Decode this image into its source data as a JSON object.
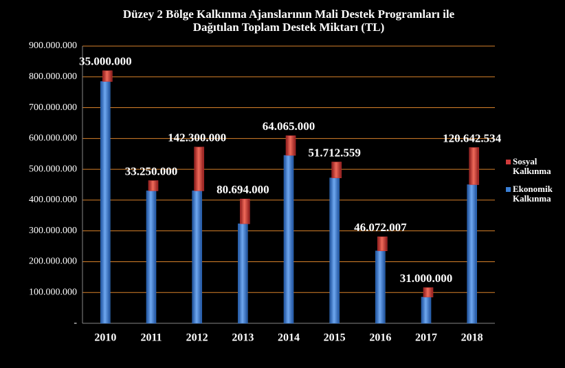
{
  "chart_data": {
    "type": "stacked_bar",
    "title": "Düzey 2 Bölge Kalkınma Ajanslarının Mali Destek Programları ile",
    "subtitle": "Dağıtılan Toplam Destek Miktarı (TL)",
    "categories": [
      "2010",
      "2011",
      "2012",
      "2013",
      "2014",
      "2015",
      "2016",
      "2017",
      "2018"
    ],
    "series": [
      {
        "name": "Ekonomik Kalkınma",
        "color": "#3a7fd5",
        "values": [
          785000000,
          430000000,
          430000000,
          323000000,
          545000000,
          472000000,
          235000000,
          85000000,
          450000000
        ]
      },
      {
        "name": "Sosyal Kalkınma",
        "color": "#d03a3a",
        "values": [
          35000000,
          33250000,
          142300000,
          80694000,
          64065000,
          51712559,
          46072007,
          31000000,
          120642534
        ],
        "value_labels": [
          "35.000.000",
          "33.250.000",
          "142.300.000",
          "80.694.000",
          "64.065.000",
          "51.712.559",
          "46.072.007",
          "31.000.000",
          "120.642.534"
        ]
      }
    ],
    "ylim": [
      0,
      900000000
    ],
    "yticks": [
      {
        "value": 0,
        "label": "-"
      },
      {
        "value": 100000000,
        "label": "100.000.000"
      },
      {
        "value": 200000000,
        "label": "200.000.000"
      },
      {
        "value": 300000000,
        "label": "300.000.000"
      },
      {
        "value": 400000000,
        "label": "400.000.000"
      },
      {
        "value": 500000000,
        "label": "500.000.000"
      },
      {
        "value": 600000000,
        "label": "600.000.000"
      },
      {
        "value": 700000000,
        "label": "700.000.000"
      },
      {
        "value": 800000000,
        "label": "800.000.000"
      },
      {
        "value": 900000000,
        "label": "900.000.000"
      }
    ],
    "grid": true,
    "grid_color": "#d9822b",
    "legend": "right"
  }
}
